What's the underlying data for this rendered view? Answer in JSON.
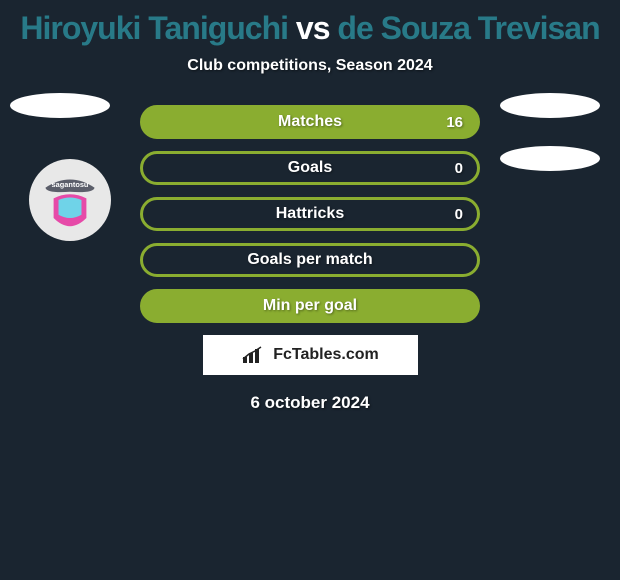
{
  "title": {
    "player1": "Hiroyuki Taniguchi",
    "vs": "vs",
    "player2": "de Souza Trevisan",
    "player1_color": "#287a88",
    "vs_color": "#ffffff",
    "player2_color": "#287a88"
  },
  "subtitle": "Club competitions, Season 2024",
  "stats": [
    {
      "label": "Matches",
      "value": "16",
      "fill": "#8aad30",
      "border": "#8aad30",
      "filled": true
    },
    {
      "label": "Goals",
      "value": "0",
      "fill": "transparent",
      "border": "#8aad30",
      "filled": false
    },
    {
      "label": "Hattricks",
      "value": "0",
      "fill": "transparent",
      "border": "#8aad30",
      "filled": false
    },
    {
      "label": "Goals per match",
      "value": "",
      "fill": "transparent",
      "border": "#8aad30",
      "filled": false
    },
    {
      "label": "Min per goal",
      "value": "",
      "fill": "#8aad30",
      "border": "#8aad30",
      "filled": true
    }
  ],
  "left_badges": {
    "count": 1
  },
  "right_badges": {
    "count": 2
  },
  "brand": "FcTables.com",
  "date": "6 october 2024",
  "colors": {
    "background": "#1a2530",
    "accent": "#8aad30",
    "text": "#ffffff"
  },
  "club_logo": {
    "name": "sagantosu",
    "bg": "#e8e8e8",
    "accent1": "#5b5e6a",
    "accent2": "#e64aa8",
    "accent3": "#6fd3e8"
  }
}
